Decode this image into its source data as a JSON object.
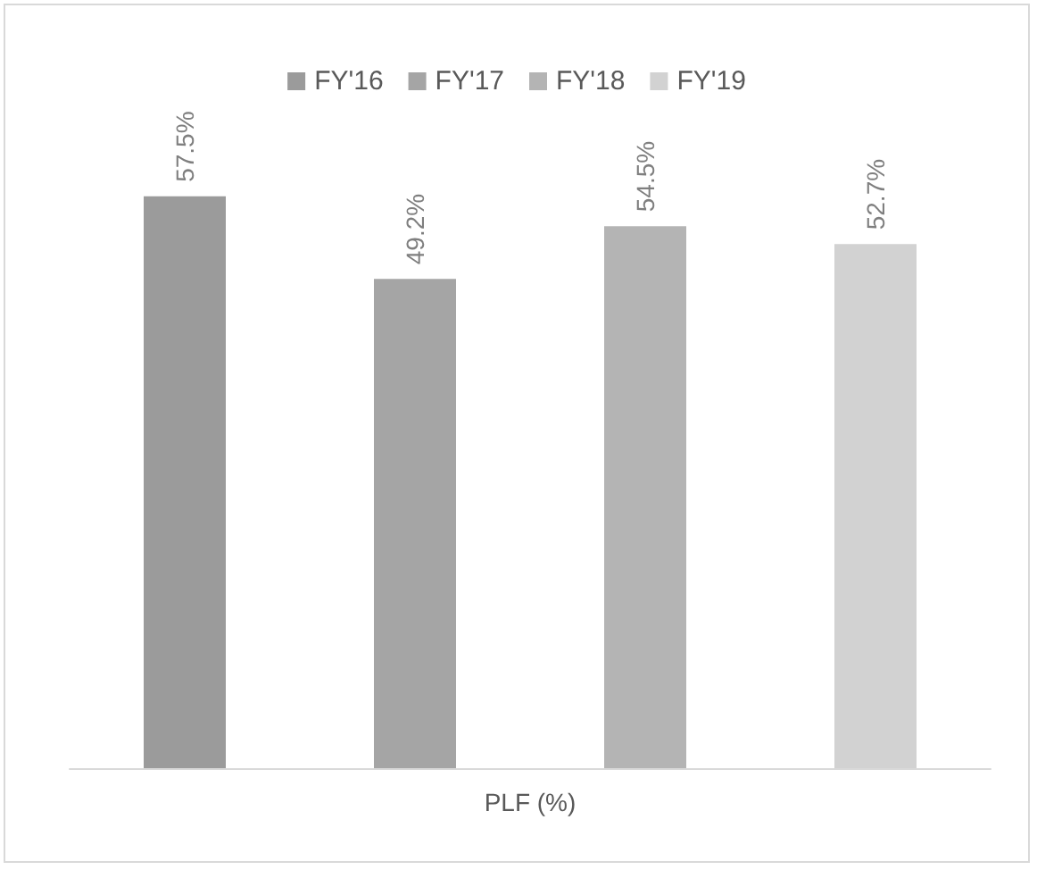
{
  "chart_data": {
    "type": "bar",
    "xlabel": "PLF (%)",
    "categories": [
      null,
      null,
      null,
      null
    ],
    "stacked": true,
    "series": [
      {
        "name": "FY'16",
        "color": "#9b9b9b",
        "values": [
          57.5,
          null,
          null,
          null
        ],
        "value_labels": [
          "57.5%",
          null,
          null,
          null
        ]
      },
      {
        "name": "FY'17",
        "color": "#a5a5a5",
        "values": [
          null,
          49.2,
          null,
          null
        ],
        "value_labels": [
          null,
          "49.2%",
          null,
          null
        ]
      },
      {
        "name": "FY'18",
        "color": "#b4b4b4",
        "values": [
          null,
          null,
          54.5,
          null
        ],
        "value_labels": [
          null,
          null,
          "54.5%",
          null
        ]
      },
      {
        "name": "FY'19",
        "color": "#d2d2d2",
        "values": [
          null,
          null,
          null,
          52.7
        ],
        "value_labels": [
          null,
          null,
          null,
          "52.7%"
        ]
      }
    ],
    "tick_labels": false,
    "grid": false,
    "legend": "top"
  }
}
